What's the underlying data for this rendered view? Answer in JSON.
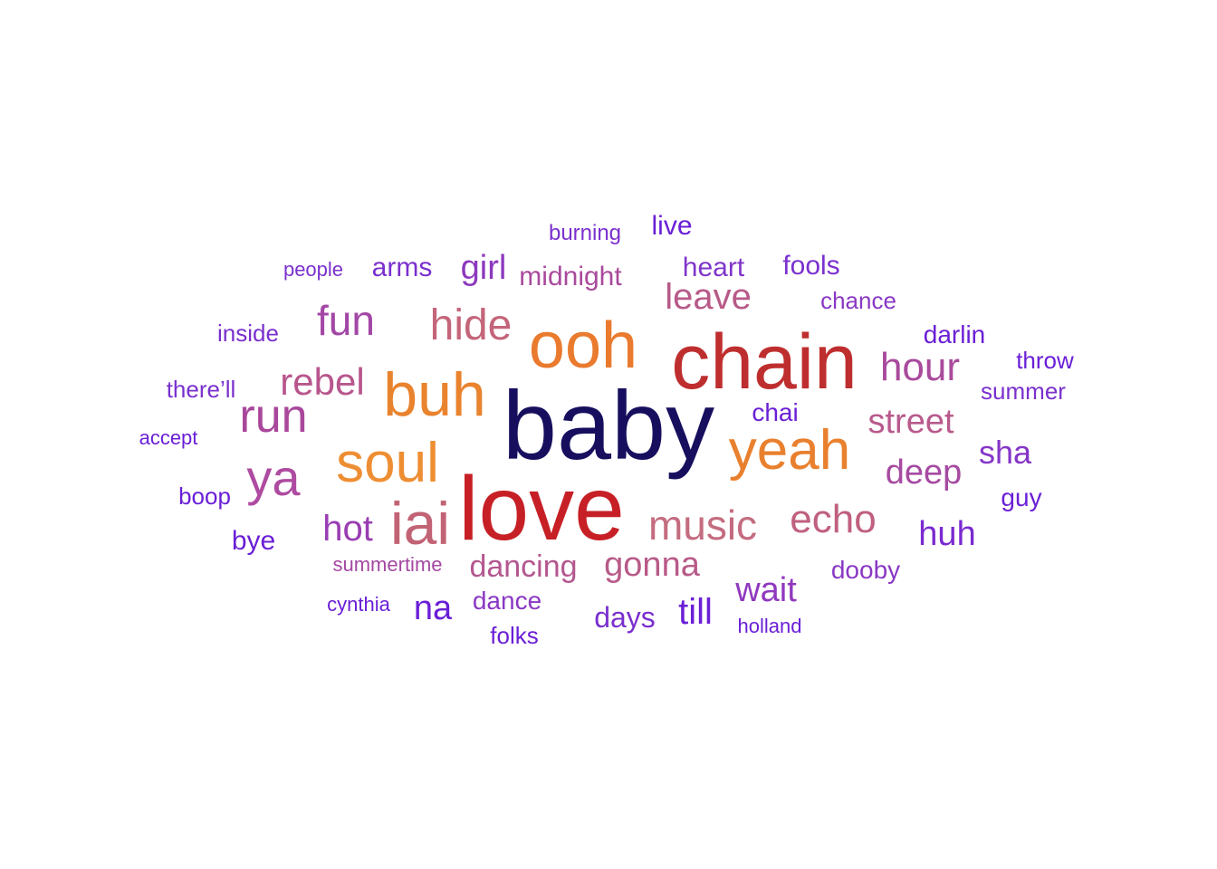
{
  "chart_data": {
    "type": "wordcloud",
    "colors": {
      "navy": "#170F5E",
      "red": "#C62026",
      "brick": "#BF2E2E",
      "orange": "#E97A2E",
      "mauve": "#C26375",
      "plum": "#A8479B",
      "purple": "#8A35C8",
      "violet": "#6A1FD6"
    },
    "words": [
      {
        "text": "baby",
        "color": "#170F5E"
      },
      {
        "text": "love",
        "color": "#C62026"
      },
      {
        "text": "chain",
        "color": "#BF2E2E"
      },
      {
        "text": "ooh",
        "color": "#E97A2E"
      },
      {
        "text": "buh",
        "color": "#E9832E"
      },
      {
        "text": "yeah",
        "color": "#E9802E"
      },
      {
        "text": "soul",
        "color": "#EE8E33"
      },
      {
        "text": "iai",
        "color": "#C26375"
      },
      {
        "text": "ya",
        "color": "#AE4BA0"
      },
      {
        "text": "run",
        "color": "#A8479B"
      },
      {
        "text": "hide",
        "color": "#C4657A"
      },
      {
        "text": "rebel",
        "color": "#B8568C"
      },
      {
        "text": "fun",
        "color": "#A347A6"
      },
      {
        "text": "music",
        "color": "#C46C80"
      },
      {
        "text": "echo",
        "color": "#C0607E"
      },
      {
        "text": "hour",
        "color": "#A94A9C"
      },
      {
        "text": "leave",
        "color": "#B85A88"
      },
      {
        "text": "street",
        "color": "#B85A8C"
      },
      {
        "text": "deep",
        "color": "#A64AA2"
      },
      {
        "text": "hot",
        "color": "#9A3DB2"
      },
      {
        "text": "girl",
        "color": "#8D38BE"
      },
      {
        "text": "gonna",
        "color": "#B85A88"
      },
      {
        "text": "dancing",
        "color": "#B45790"
      },
      {
        "text": "wait",
        "color": "#9038BE"
      },
      {
        "text": "huh",
        "color": "#7A2AD0"
      },
      {
        "text": "sha",
        "color": "#8535C8"
      },
      {
        "text": "till",
        "color": "#6A1FD6"
      },
      {
        "text": "na",
        "color": "#6A1FD6"
      },
      {
        "text": "midnight",
        "color": "#A94A9C"
      },
      {
        "text": "heart",
        "color": "#8035CA"
      },
      {
        "text": "arms",
        "color": "#7A30CE"
      },
      {
        "text": "fools",
        "color": "#7A30CE"
      },
      {
        "text": "live",
        "color": "#6A1FD6"
      },
      {
        "text": "days",
        "color": "#7A30CE"
      },
      {
        "text": "dance",
        "color": "#8A38C4"
      },
      {
        "text": "chai",
        "color": "#6A1FD6"
      },
      {
        "text": "guy",
        "color": "#6A1FD6"
      },
      {
        "text": "dooby",
        "color": "#8A38C4"
      },
      {
        "text": "darlin",
        "color": "#6A1FD6"
      },
      {
        "text": "chance",
        "color": "#8A38C4"
      },
      {
        "text": "summer",
        "color": "#7A30CE"
      },
      {
        "text": "throw",
        "color": "#6A1FD6"
      },
      {
        "text": "inside",
        "color": "#7A30CE"
      },
      {
        "text": "there’ll",
        "color": "#7A30CE"
      },
      {
        "text": "bye",
        "color": "#6A1FD6"
      },
      {
        "text": "boop",
        "color": "#6A1FD6"
      },
      {
        "text": "burning",
        "color": "#7A30CE"
      },
      {
        "text": "folks",
        "color": "#6A1FD6"
      },
      {
        "text": "summertime",
        "color": "#A447A2"
      },
      {
        "text": "people",
        "color": "#7A30CE"
      },
      {
        "text": "accept",
        "color": "#6A1FD6"
      },
      {
        "text": "cynthia",
        "color": "#6A1FD6"
      },
      {
        "text": "holland",
        "color": "#6A1FD6"
      }
    ]
  }
}
